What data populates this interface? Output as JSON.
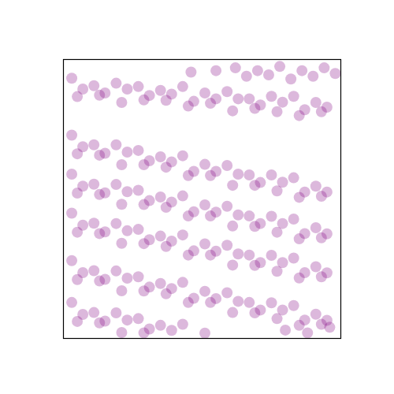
{
  "chart_data": {
    "type": "scatter",
    "color": "#800080",
    "marker": "circle",
    "xlim": [
      0,
      1
    ],
    "ylim": [
      0,
      1
    ],
    "xticks": [],
    "yticks": [],
    "tick_labels": false,
    "grid": false,
    "points": [
      [
        0.03,
        0.933
      ],
      [
        0.11,
        0.906
      ],
      [
        0.19,
        0.915
      ],
      [
        0.27,
        0.903
      ],
      [
        0.35,
        0.889
      ],
      [
        0.43,
        0.903
      ],
      [
        0.51,
        0.88
      ],
      [
        0.59,
        0.885
      ],
      [
        0.67,
        0.859
      ],
      [
        0.75,
        0.868
      ],
      [
        0.83,
        0.868
      ],
      [
        0.91,
        0.846
      ],
      [
        0.07,
        0.894
      ],
      [
        0.15,
        0.88
      ],
      [
        0.23,
        0.894
      ],
      [
        0.31,
        0.871
      ],
      [
        0.39,
        0.876
      ],
      [
        0.47,
        0.85
      ],
      [
        0.55,
        0.859
      ],
      [
        0.63,
        0.859
      ],
      [
        0.71,
        0.837
      ],
      [
        0.79,
        0.847
      ],
      [
        0.87,
        0.82
      ],
      [
        0.95,
        0.829
      ],
      [
        0.05,
        0.867
      ],
      [
        0.13,
        0.872
      ],
      [
        0.21,
        0.846
      ],
      [
        0.29,
        0.855
      ],
      [
        0.37,
        0.854
      ],
      [
        0.45,
        0.833
      ],
      [
        0.53,
        0.843
      ],
      [
        0.61,
        0.816
      ],
      [
        0.69,
        0.825
      ],
      [
        0.77,
        0.813
      ],
      [
        0.85,
        0.799
      ],
      [
        0.93,
        0.813
      ],
      [
        0.62,
        0.97
      ],
      [
        0.7,
        0.96
      ],
      [
        0.78,
        0.975
      ],
      [
        0.86,
        0.96
      ],
      [
        0.94,
        0.97
      ],
      [
        0.66,
        0.94
      ],
      [
        0.74,
        0.945
      ],
      [
        0.82,
        0.93
      ],
      [
        0.9,
        0.94
      ],
      [
        0.98,
        0.95
      ],
      [
        0.55,
        0.96
      ],
      [
        0.46,
        0.955
      ],
      [
        0.03,
        0.729
      ],
      [
        0.11,
        0.694
      ],
      [
        0.19,
        0.694
      ],
      [
        0.27,
        0.674
      ],
      [
        0.35,
        0.651
      ],
      [
        0.43,
        0.655
      ],
      [
        0.51,
        0.624
      ],
      [
        0.59,
        0.62
      ],
      [
        0.67,
        0.586
      ],
      [
        0.75,
        0.586
      ],
      [
        0.83,
        0.576
      ],
      [
        0.91,
        0.546
      ],
      [
        0.07,
        0.687
      ],
      [
        0.15,
        0.664
      ],
      [
        0.23,
        0.668
      ],
      [
        0.31,
        0.637
      ],
      [
        0.39,
        0.633
      ],
      [
        0.47,
        0.599
      ],
      [
        0.55,
        0.599
      ],
      [
        0.63,
        0.589
      ],
      [
        0.71,
        0.559
      ],
      [
        0.79,
        0.56
      ],
      [
        0.87,
        0.525
      ],
      [
        0.95,
        0.525
      ],
      [
        0.05,
        0.662
      ],
      [
        0.13,
        0.657
      ],
      [
        0.21,
        0.623
      ],
      [
        0.29,
        0.623
      ],
      [
        0.37,
        0.614
      ],
      [
        0.45,
        0.584
      ],
      [
        0.53,
        0.584
      ],
      [
        0.61,
        0.549
      ],
      [
        0.69,
        0.549
      ],
      [
        0.77,
        0.529
      ],
      [
        0.85,
        0.506
      ],
      [
        0.93,
        0.51
      ],
      [
        0.03,
        0.589
      ],
      [
        0.11,
        0.553
      ],
      [
        0.19,
        0.552
      ],
      [
        0.27,
        0.531
      ],
      [
        0.35,
        0.507
      ],
      [
        0.43,
        0.511
      ],
      [
        0.51,
        0.479
      ],
      [
        0.59,
        0.474
      ],
      [
        0.67,
        0.439
      ],
      [
        0.75,
        0.438
      ],
      [
        0.83,
        0.428
      ],
      [
        0.91,
        0.397
      ],
      [
        0.07,
        0.546
      ],
      [
        0.15,
        0.522
      ],
      [
        0.23,
        0.526
      ],
      [
        0.31,
        0.494
      ],
      [
        0.39,
        0.489
      ],
      [
        0.47,
        0.454
      ],
      [
        0.55,
        0.453
      ],
      [
        0.63,
        0.443
      ],
      [
        0.71,
        0.412
      ],
      [
        0.79,
        0.412
      ],
      [
        0.87,
        0.376
      ],
      [
        0.95,
        0.375
      ],
      [
        0.05,
        0.521
      ],
      [
        0.13,
        0.516
      ],
      [
        0.21,
        0.481
      ],
      [
        0.29,
        0.48
      ],
      [
        0.37,
        0.47
      ],
      [
        0.45,
        0.439
      ],
      [
        0.53,
        0.439
      ],
      [
        0.61,
        0.403
      ],
      [
        0.69,
        0.402
      ],
      [
        0.77,
        0.381
      ],
      [
        0.85,
        0.357
      ],
      [
        0.93,
        0.361
      ],
      [
        0.03,
        0.449
      ],
      [
        0.11,
        0.413
      ],
      [
        0.19,
        0.412
      ],
      [
        0.27,
        0.391
      ],
      [
        0.35,
        0.367
      ],
      [
        0.43,
        0.371
      ],
      [
        0.51,
        0.339
      ],
      [
        0.59,
        0.334
      ],
      [
        0.67,
        0.299
      ],
      [
        0.75,
        0.298
      ],
      [
        0.83,
        0.288
      ],
      [
        0.91,
        0.257
      ],
      [
        0.07,
        0.406
      ],
      [
        0.15,
        0.382
      ],
      [
        0.23,
        0.386
      ],
      [
        0.31,
        0.354
      ],
      [
        0.39,
        0.349
      ],
      [
        0.47,
        0.314
      ],
      [
        0.55,
        0.313
      ],
      [
        0.63,
        0.303
      ],
      [
        0.71,
        0.272
      ],
      [
        0.79,
        0.272
      ],
      [
        0.87,
        0.236
      ],
      [
        0.95,
        0.235
      ],
      [
        0.05,
        0.381
      ],
      [
        0.13,
        0.376
      ],
      [
        0.21,
        0.341
      ],
      [
        0.29,
        0.34
      ],
      [
        0.37,
        0.33
      ],
      [
        0.45,
        0.299
      ],
      [
        0.53,
        0.299
      ],
      [
        0.61,
        0.263
      ],
      [
        0.69,
        0.262
      ],
      [
        0.77,
        0.241
      ],
      [
        0.85,
        0.217
      ],
      [
        0.93,
        0.221
      ],
      [
        0.03,
        0.279
      ],
      [
        0.11,
        0.243
      ],
      [
        0.19,
        0.242
      ],
      [
        0.27,
        0.221
      ],
      [
        0.35,
        0.197
      ],
      [
        0.43,
        0.201
      ],
      [
        0.51,
        0.169
      ],
      [
        0.59,
        0.164
      ],
      [
        0.67,
        0.129
      ],
      [
        0.75,
        0.128
      ],
      [
        0.83,
        0.118
      ],
      [
        0.91,
        0.087
      ],
      [
        0.07,
        0.236
      ],
      [
        0.15,
        0.212
      ],
      [
        0.23,
        0.216
      ],
      [
        0.31,
        0.184
      ],
      [
        0.39,
        0.179
      ],
      [
        0.47,
        0.144
      ],
      [
        0.55,
        0.143
      ],
      [
        0.63,
        0.133
      ],
      [
        0.71,
        0.102
      ],
      [
        0.79,
        0.102
      ],
      [
        0.87,
        0.066
      ],
      [
        0.95,
        0.065
      ],
      [
        0.05,
        0.211
      ],
      [
        0.13,
        0.206
      ],
      [
        0.21,
        0.171
      ],
      [
        0.29,
        0.17
      ],
      [
        0.37,
        0.16
      ],
      [
        0.45,
        0.129
      ],
      [
        0.53,
        0.129
      ],
      [
        0.61,
        0.093
      ],
      [
        0.69,
        0.092
      ],
      [
        0.77,
        0.071
      ],
      [
        0.85,
        0.047
      ],
      [
        0.93,
        0.051
      ],
      [
        0.03,
        0.129
      ],
      [
        0.11,
        0.093
      ],
      [
        0.19,
        0.092
      ],
      [
        0.27,
        0.071
      ],
      [
        0.35,
        0.047
      ],
      [
        0.43,
        0.051
      ],
      [
        0.51,
        0.019
      ],
      [
        0.07,
        0.086
      ],
      [
        0.15,
        0.062
      ],
      [
        0.23,
        0.066
      ],
      [
        0.31,
        0.034
      ],
      [
        0.39,
        0.029
      ],
      [
        0.05,
        0.061
      ],
      [
        0.13,
        0.056
      ],
      [
        0.21,
        0.021
      ],
      [
        0.29,
        0.02
      ],
      [
        0.8,
        0.03
      ],
      [
        0.88,
        0.02
      ],
      [
        0.96,
        0.04
      ]
    ]
  }
}
